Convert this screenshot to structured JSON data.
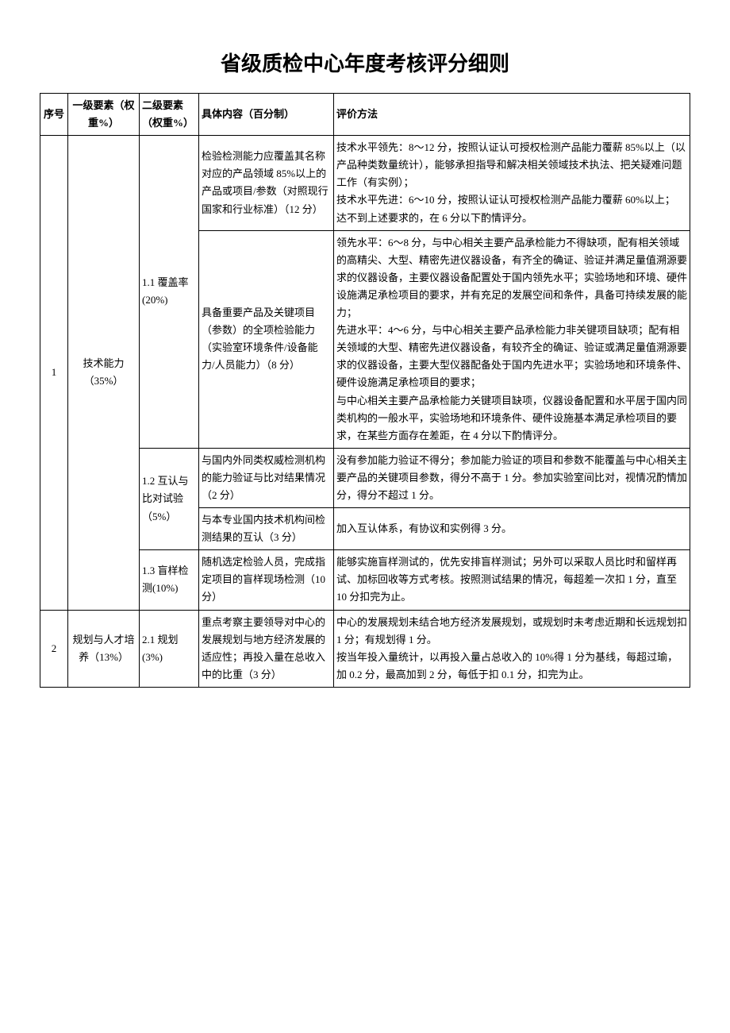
{
  "title": "省级质检中心年度考核评分细则",
  "headers": {
    "seq": "序号",
    "l1": "一级要素（权重%）",
    "l2": "二级要素（权重%）",
    "content": "具体内容（百分制）",
    "eval": "评价方法"
  },
  "rows": [
    {
      "seq": "1",
      "l1": "技术能力（35%）",
      "l2_1": "1.1 覆盖率(20%)",
      "c1": "检验检测能力应覆盖其名称对应的产品领域 85%以上的产品或项目/参数（对照现行国家和行业标准）（12 分）",
      "e1": "技术水平领先：8～12 分，按照认证认可授权检测产品能力覆薪 85%以上（以产品种类数量统计），能够承担指导和解决相关领域技术执法、把关疑难问题工作（有实例）；\n技术水平先进：6～10 分，按照认证认可授权检测产品能力覆薪 60%以上；\n达不到上述要求的，在 6 分以下酌情评分。",
      "c2": "具备重要产品及关键项目（参数）的全项检验能力（实验室环境条件/设备能力/人员能力）（8 分）",
      "e2": "领先水平：6～8 分，与中心相关主要产品承检能力不得缺项，配有相关领域的高精尖、大型、精密先进仪器设备，有齐全的确证、验证并满足量值溯源要求的仪器设备，主要仪器设备配置处于国内领先水平；实验场地和环境、硬件设施满足承检项目的要求，并有充足的发展空间和条件，具备可持续发展的能力；\n先进水平：4～6 分，与中心相关主要产品承检能力非关键项目缺项；配有相关领域的大型、精密先进仪器设备，有较齐全的确证、验证或满足量值溯源要求的仪器设备，主要大型仪器配备处于国内先进水平；实验场地和环境条件、硬件设施满足承检项目的要求；\n与中心相关主要产品承检能力关键项目缺项，仪器设备配置和水平居于国内同类机构的一般水平，实验场地和环境条件、硬件设施基本满足承检项目的要求，在某些方面存在差距，在 4 分以下酌情评分。",
      "l2_2": "1.2 互认与比对试验（5%）",
      "c3": "与国内外同类权威检测机构的能力验证与比对结果情况（2 分）",
      "e3": "没有参加能力验证不得分；参加能力验证的项目和参数不能覆盖与中心相关主要产品的关键项目参数，得分不高于 1 分。参加实验室间比对，视情况酌情加分，得分不超过 1 分。",
      "c4": "与本专业国内技术机构间检测结果的互认（3 分）",
      "e4": "加入互认体系，有协议和实例得 3 分。",
      "l2_3": "1.3 盲样检测(10%)",
      "c5": "随机选定检验人员，完成指定项目的盲样现场检测（10 分）",
      "e5": "能够实施盲样测试的，优先安排盲样测试；另外可以采取人员比时和留样再试、加标回收等方式考核。按照测试结果的情况，每超差一次扣 1 分，直至 10 分扣完为止。"
    },
    {
      "seq": "2",
      "l1": "规划与人才培养（13%）",
      "l2": "2.1 规划(3%)",
      "c": "重点考察主要领导对中心的发展规划与地方经济发展的适应性；再投入量在总收入中的比重（3 分）",
      "e": "中心的发展规划未结合地方经济发展规划，或规划时未考虑近期和长远规划扣 1 分；有规划得 1 分。\n按当年投入量统计，以再投入量占总收入的 10%得 1 分为基线，每超过瑜，加 0.2 分，最高加到 2 分，每低于扣 0.1 分，扣完为止。"
    }
  ]
}
